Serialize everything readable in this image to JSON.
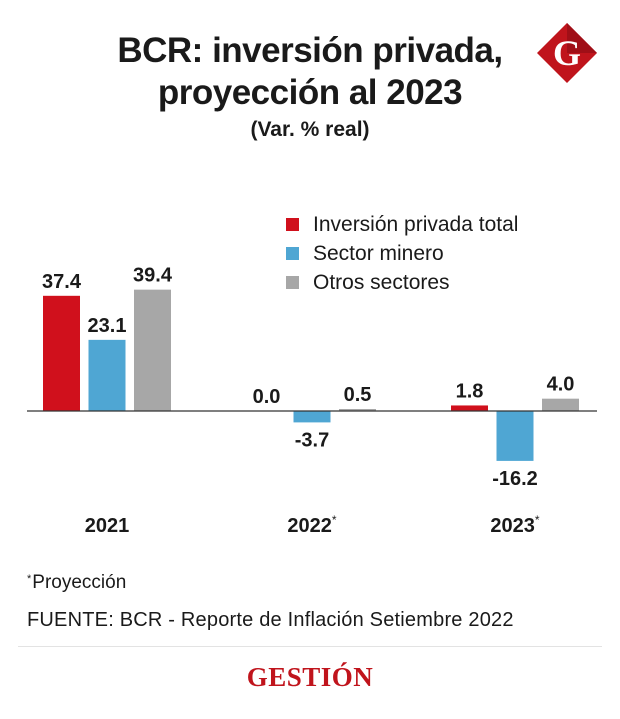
{
  "header": {
    "title_line1": "BCR: inversión privada,",
    "title_line2": "proyección al 2023",
    "subtitle": "(Var. % real)",
    "logo_letter": "G"
  },
  "chart_data": {
    "type": "bar",
    "title": "BCR: inversión privada, proyección al 2023",
    "subtitle": "(Var. % real)",
    "categories": [
      "2021",
      "2022",
      "2023"
    ],
    "category_marks": [
      "",
      "*",
      "*"
    ],
    "series": [
      {
        "name": "Inversión privada total",
        "color": "#d0101c",
        "values": [
          37.4,
          0.0,
          1.8
        ],
        "labels": [
          "37.4",
          "0.0",
          "1.8"
        ]
      },
      {
        "name": "Sector minero",
        "color": "#4fa6d3",
        "values": [
          23.1,
          -3.7,
          -16.2
        ],
        "labels": [
          "23.1",
          "-3.7",
          "-16.2"
        ]
      },
      {
        "name": "Otros sectores",
        "color": "#a7a7a7",
        "values": [
          39.4,
          0.5,
          4.0
        ],
        "labels": [
          "39.4",
          "0.5",
          "4.0"
        ]
      }
    ],
    "xlabel": "",
    "ylabel": "Var. % real",
    "ylim": [
      -20,
      45
    ],
    "grid": false,
    "legend_position": "top-right"
  },
  "footer": {
    "footnote_mark": "*",
    "footnote_text": "Proyección",
    "source": "FUENTE: BCR - Reporte de Inflación Setiembre 2022",
    "brand": "GESTIÓN"
  },
  "colors": {
    "brand_red": "#c0141c",
    "axis": "#333333"
  }
}
